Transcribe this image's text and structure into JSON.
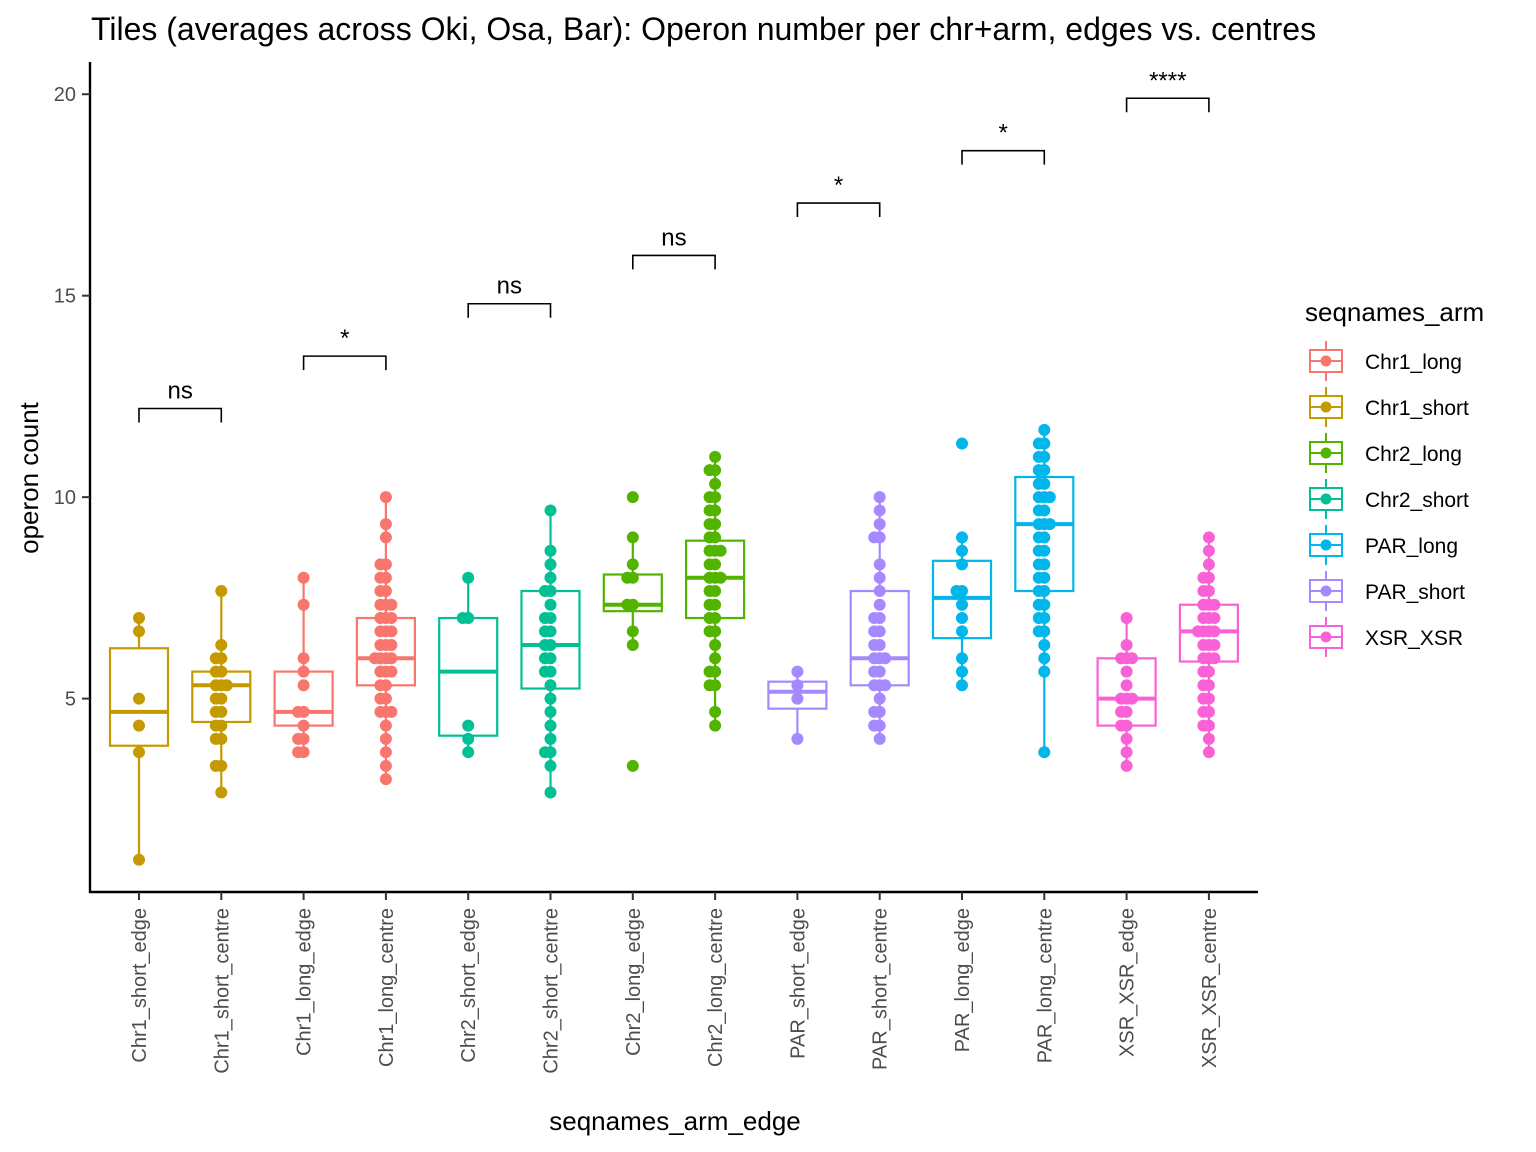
{
  "chart_data": {
    "type": "box",
    "title": "Tiles (averages across Oki, Osa, Bar): Operon number per chr+arm, edges vs. centres",
    "xlabel": "seqnames_arm_edge",
    "ylabel": "operon count",
    "ylim": [
      0.2,
      20.8
    ],
    "yticks": [
      5,
      10,
      15,
      20
    ],
    "grid": false,
    "legend_placement": "right",
    "legend_title": "seqnames_arm",
    "legend": [
      {
        "name": "Chr1_long",
        "color": "#F8766D"
      },
      {
        "name": "Chr1_short",
        "color": "#C49A00"
      },
      {
        "name": "Chr2_long",
        "color": "#53B400"
      },
      {
        "name": "Chr2_short",
        "color": "#00C094"
      },
      {
        "name": "PAR_long",
        "color": "#00B6EB"
      },
      {
        "name": "PAR_short",
        "color": "#A58AFF"
      },
      {
        "name": "XSR_XSR",
        "color": "#FB61D7"
      }
    ],
    "categories": [
      {
        "label": "Chr1_short_edge",
        "group": "Chr1_short",
        "box": {
          "q1": 3.83,
          "median": 4.67,
          "q3": 6.25,
          "lower": 1.0,
          "upper": 7.0
        },
        "points": [
          7.0,
          6.67,
          5.0,
          4.33,
          3.67,
          1.0
        ]
      },
      {
        "label": "Chr1_short_centre",
        "group": "Chr1_short",
        "box": {
          "q1": 4.42,
          "median": 5.33,
          "q3": 5.67,
          "lower": 2.67,
          "upper": 7.67
        },
        "points": [
          7.67,
          6.33,
          6.0,
          6.0,
          5.67,
          5.67,
          5.33,
          5.33,
          5.33,
          5.0,
          5.0,
          4.67,
          4.67,
          4.33,
          4.33,
          4.0,
          4.0,
          3.33,
          3.33,
          2.67
        ]
      },
      {
        "label": "Chr1_long_edge",
        "group": "Chr1_long",
        "box": {
          "q1": 4.33,
          "median": 4.67,
          "q3": 5.67,
          "lower": 3.67,
          "upper": 8.0
        },
        "points": [
          8.0,
          7.33,
          6.0,
          5.67,
          5.33,
          4.67,
          4.67,
          4.33,
          4.0,
          4.0,
          3.67,
          3.67
        ]
      },
      {
        "label": "Chr1_long_centre",
        "group": "Chr1_long",
        "box": {
          "q1": 5.33,
          "median": 6.0,
          "q3": 7.0,
          "lower": 3.0,
          "upper": 10.0
        },
        "points": [
          10.0,
          9.33,
          9.0,
          8.33,
          8.33,
          8.0,
          8.0,
          7.67,
          7.67,
          7.33,
          7.33,
          7.33,
          7.0,
          7.0,
          7.0,
          6.67,
          6.67,
          6.67,
          6.33,
          6.33,
          6.33,
          6.0,
          6.0,
          6.0,
          6.0,
          5.67,
          5.67,
          5.67,
          5.33,
          5.33,
          5.0,
          5.0,
          4.67,
          4.67,
          4.67,
          4.33,
          4.0,
          3.67,
          3.33,
          3.0
        ]
      },
      {
        "label": "Chr2_short_edge",
        "group": "Chr2_short",
        "box": {
          "q1": 4.08,
          "median": 5.67,
          "q3": 7.0,
          "lower": 3.67,
          "upper": 8.0
        },
        "points": [
          8.0,
          7.0,
          7.0,
          4.33,
          4.0,
          3.67
        ]
      },
      {
        "label": "Chr2_short_centre",
        "group": "Chr2_short",
        "box": {
          "q1": 5.25,
          "median": 6.33,
          "q3": 7.67,
          "lower": 2.67,
          "upper": 9.67
        },
        "points": [
          9.67,
          8.67,
          8.33,
          8.0,
          7.67,
          7.67,
          7.33,
          7.0,
          7.0,
          6.67,
          6.67,
          6.33,
          6.33,
          6.0,
          6.0,
          5.67,
          5.67,
          5.33,
          5.0,
          4.67,
          4.33,
          4.0,
          3.67,
          3.67,
          3.33,
          2.67
        ]
      },
      {
        "label": "Chr2_long_edge",
        "group": "Chr2_long",
        "box": {
          "q1": 7.17,
          "median": 7.33,
          "q3": 8.08,
          "lower": 6.33,
          "upper": 9.0
        },
        "points": [
          10.0,
          9.0,
          8.33,
          8.0,
          8.0,
          7.33,
          7.33,
          6.67,
          6.33,
          3.33
        ]
      },
      {
        "label": "Chr2_long_centre",
        "group": "Chr2_long",
        "box": {
          "q1": 7.0,
          "median": 8.0,
          "q3": 8.92,
          "lower": 4.33,
          "upper": 11.0
        },
        "points": [
          11.0,
          10.67,
          10.67,
          10.33,
          10.0,
          10.0,
          9.67,
          9.67,
          9.33,
          9.33,
          9.0,
          9.0,
          8.67,
          8.67,
          8.67,
          8.33,
          8.33,
          8.0,
          8.0,
          8.0,
          7.67,
          7.67,
          7.33,
          7.33,
          7.0,
          7.0,
          6.67,
          6.67,
          6.33,
          6.0,
          5.67,
          5.67,
          5.33,
          5.33,
          4.67,
          4.33
        ]
      },
      {
        "label": "PAR_short_edge",
        "group": "PAR_short",
        "box": {
          "q1": 4.75,
          "median": 5.17,
          "q3": 5.42,
          "lower": 4.0,
          "upper": 5.67
        },
        "points": [
          5.67,
          5.33,
          5.0,
          4.0
        ]
      },
      {
        "label": "PAR_short_centre",
        "group": "PAR_short",
        "box": {
          "q1": 5.33,
          "median": 6.0,
          "q3": 7.67,
          "lower": 4.0,
          "upper": 10.0
        },
        "points": [
          10.0,
          9.67,
          9.33,
          9.0,
          9.0,
          8.33,
          8.0,
          7.67,
          7.33,
          7.0,
          7.0,
          6.67,
          6.67,
          6.33,
          6.33,
          6.0,
          6.0,
          6.0,
          5.67,
          5.67,
          5.33,
          5.33,
          5.33,
          5.0,
          4.67,
          4.67,
          4.33,
          4.33,
          4.0
        ]
      },
      {
        "label": "PAR_long_edge",
        "group": "PAR_long",
        "box": {
          "q1": 6.5,
          "median": 7.5,
          "q3": 8.42,
          "lower": 5.33,
          "upper": 9.0
        },
        "points": [
          11.33,
          9.0,
          8.67,
          8.33,
          7.67,
          7.67,
          7.33,
          7.0,
          6.67,
          6.0,
          5.67,
          5.33
        ]
      },
      {
        "label": "PAR_long_centre",
        "group": "PAR_long",
        "box": {
          "q1": 7.67,
          "median": 9.33,
          "q3": 10.5,
          "lower": 3.67,
          "upper": 11.67
        },
        "points": [
          11.67,
          11.33,
          11.33,
          11.0,
          11.0,
          10.67,
          10.67,
          10.33,
          10.33,
          10.0,
          10.0,
          10.0,
          9.67,
          9.67,
          9.33,
          9.33,
          9.33,
          9.0,
          9.0,
          8.67,
          8.67,
          8.33,
          8.33,
          8.0,
          8.0,
          7.67,
          7.67,
          7.33,
          7.33,
          7.0,
          7.0,
          6.67,
          6.67,
          6.33,
          6.0,
          5.67,
          3.67
        ]
      },
      {
        "label": "XSR_XSR_edge",
        "group": "XSR_XSR",
        "box": {
          "q1": 4.33,
          "median": 5.0,
          "q3": 6.0,
          "lower": 3.33,
          "upper": 7.0
        },
        "points": [
          7.0,
          6.33,
          6.0,
          6.0,
          6.0,
          5.67,
          5.33,
          5.0,
          5.0,
          5.0,
          4.67,
          4.67,
          4.33,
          4.33,
          4.0,
          3.67,
          3.33
        ]
      },
      {
        "label": "XSR_XSR_centre",
        "group": "XSR_XSR",
        "box": {
          "q1": 5.92,
          "median": 6.67,
          "q3": 7.33,
          "lower": 3.67,
          "upper": 9.0
        },
        "points": [
          9.0,
          8.67,
          8.33,
          8.0,
          8.0,
          7.67,
          7.67,
          7.33,
          7.33,
          7.33,
          7.0,
          7.0,
          7.0,
          6.67,
          6.67,
          6.67,
          6.67,
          6.33,
          6.33,
          6.33,
          6.0,
          6.0,
          6.0,
          5.67,
          5.67,
          5.33,
          5.33,
          5.0,
          5.0,
          4.67,
          4.67,
          4.33,
          4.33,
          4.0,
          3.67
        ]
      }
    ],
    "comparisons": [
      {
        "from": 0,
        "to": 1,
        "label": "ns",
        "y": 12.2
      },
      {
        "from": 2,
        "to": 3,
        "label": "*",
        "y": 13.5
      },
      {
        "from": 4,
        "to": 5,
        "label": "ns",
        "y": 14.8
      },
      {
        "from": 6,
        "to": 7,
        "label": "ns",
        "y": 16.0
      },
      {
        "from": 8,
        "to": 9,
        "label": "*",
        "y": 17.3
      },
      {
        "from": 10,
        "to": 11,
        "label": "*",
        "y": 18.6
      },
      {
        "from": 12,
        "to": 13,
        "label": "****",
        "y": 19.9
      }
    ]
  }
}
